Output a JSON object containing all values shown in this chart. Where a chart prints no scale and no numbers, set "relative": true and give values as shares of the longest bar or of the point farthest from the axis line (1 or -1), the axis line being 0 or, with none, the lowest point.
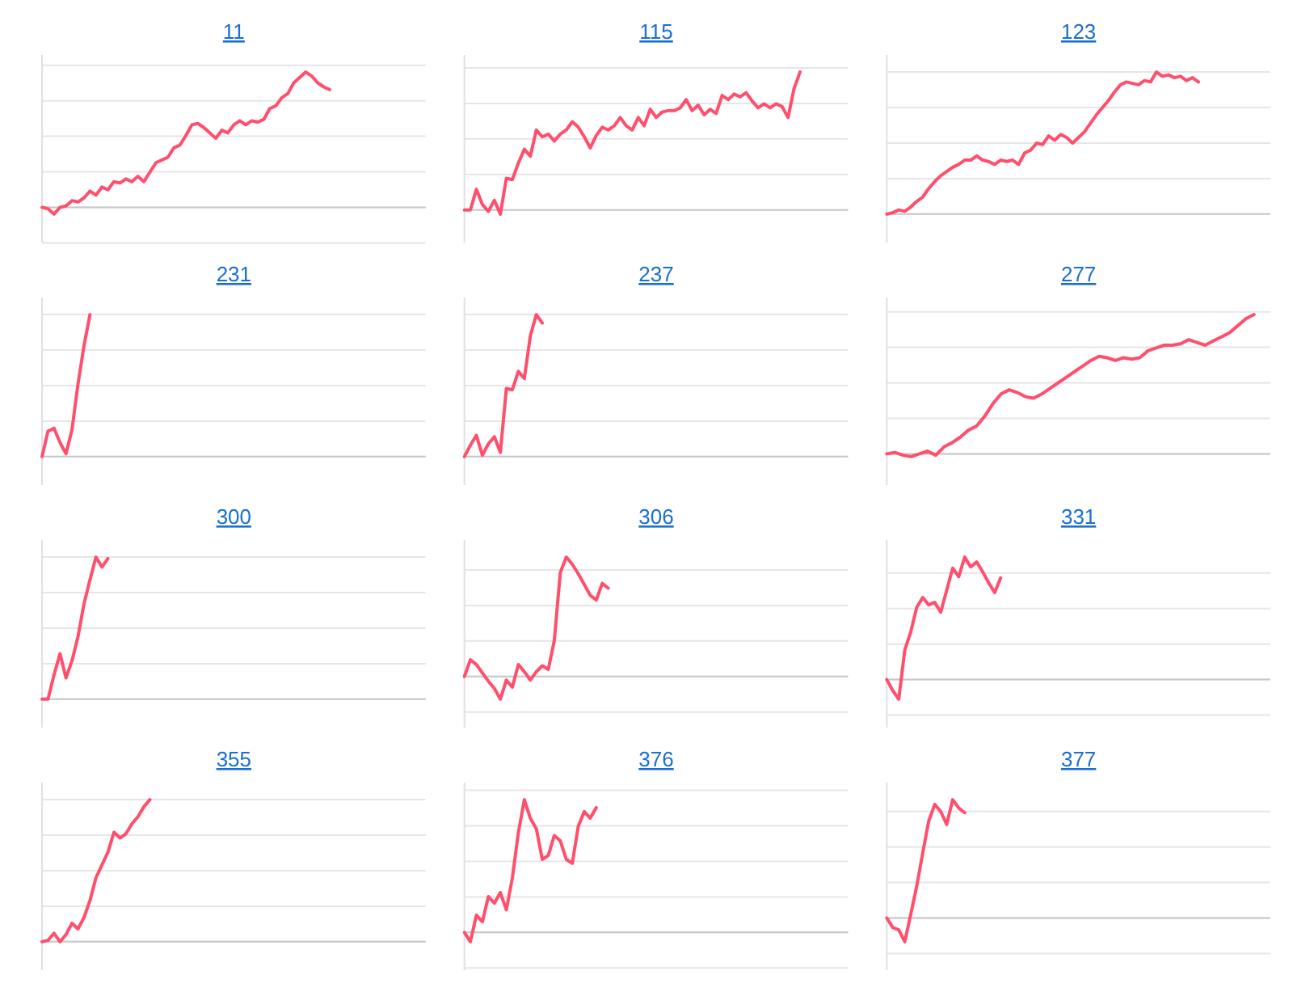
{
  "chart_data": [
    {
      "type": "line",
      "title": "11",
      "relative": true,
      "grid": "y",
      "categories": [
        null,
        null,
        null,
        null,
        null,
        null,
        null,
        null,
        null,
        null,
        null,
        null,
        null,
        null,
        null,
        null,
        null,
        null,
        null,
        null,
        null,
        null,
        null,
        null,
        null,
        null,
        null,
        null,
        null,
        null,
        null,
        null,
        null,
        null,
        null,
        null,
        null,
        null,
        null,
        null,
        null,
        null,
        null,
        null,
        null,
        null,
        null,
        null,
        null,
        null,
        null,
        null,
        null,
        null,
        null,
        null,
        null,
        null,
        null,
        null,
        null,
        null,
        null,
        null,
        null
      ],
      "series": [
        {
          "color": "#ff4f6d",
          "values": [
            0,
            -0.01,
            -0.05,
            0,
            0.01,
            0.05,
            0.04,
            0.07,
            0.12,
            0.09,
            0.15,
            0.13,
            0.19,
            0.18,
            0.21,
            0.19,
            0.23,
            0.19,
            0.26,
            0.33,
            0.35,
            0.37,
            0.44,
            0.46,
            0.53,
            0.61,
            0.62,
            0.59,
            0.55,
            0.51,
            0.57,
            0.55,
            0.61,
            0.64,
            0.61,
            0.64,
            0.63,
            0.65,
            0.73,
            0.75,
            0.81,
            0.84,
            0.92,
            0.96,
            1,
            0.97,
            0.92,
            0.89,
            0.87,
            null,
            null,
            null,
            null,
            null,
            null,
            null,
            null,
            null,
            null,
            null,
            null,
            null,
            null,
            null,
            null
          ]
        }
      ]
    },
    {
      "type": "line",
      "title": "115",
      "relative": true,
      "grid": "y",
      "categories": [
        null,
        null,
        null,
        null,
        null,
        null,
        null,
        null,
        null,
        null,
        null,
        null,
        null,
        null,
        null,
        null,
        null,
        null,
        null,
        null,
        null,
        null,
        null,
        null,
        null,
        null,
        null,
        null,
        null,
        null,
        null,
        null,
        null,
        null,
        null,
        null,
        null,
        null,
        null,
        null,
        null,
        null,
        null,
        null,
        null,
        null,
        null,
        null,
        null,
        null,
        null,
        null,
        null,
        null,
        null,
        null,
        null,
        null,
        null,
        null,
        null,
        null,
        null,
        null,
        null
      ],
      "series": [
        {
          "color": "#ff4f6d",
          "values": [
            0,
            0,
            0.15,
            0.04,
            -0.01,
            0.07,
            -0.03,
            0.23,
            0.22,
            0.34,
            0.44,
            0.39,
            0.58,
            0.53,
            0.55,
            0.5,
            0.55,
            0.58,
            0.64,
            0.6,
            0.53,
            0.45,
            0.54,
            0.6,
            0.58,
            0.61,
            0.67,
            0.61,
            0.58,
            0.67,
            0.61,
            0.73,
            0.67,
            0.71,
            0.72,
            0.72,
            0.74,
            0.8,
            0.72,
            0.76,
            0.69,
            0.73,
            0.7,
            0.83,
            0.8,
            0.84,
            0.82,
            0.85,
            0.79,
            0.74,
            0.77,
            0.74,
            0.77,
            0.75,
            0.67,
            0.88,
            1,
            null,
            null,
            null,
            null,
            null,
            null,
            null,
            null
          ]
        }
      ]
    },
    {
      "type": "line",
      "title": "123",
      "relative": true,
      "grid": "y",
      "categories": [
        null,
        null,
        null,
        null,
        null,
        null,
        null,
        null,
        null,
        null,
        null,
        null,
        null,
        null,
        null,
        null,
        null,
        null,
        null,
        null,
        null,
        null,
        null,
        null,
        null,
        null,
        null,
        null,
        null,
        null,
        null,
        null,
        null,
        null,
        null,
        null,
        null,
        null,
        null,
        null,
        null,
        null,
        null,
        null,
        null,
        null,
        null,
        null,
        null,
        null,
        null,
        null,
        null,
        null,
        null,
        null,
        null,
        null,
        null,
        null,
        null,
        null,
        null,
        null,
        null
      ],
      "series": [
        {
          "color": "#ff4f6d",
          "values": [
            0,
            0.01,
            0.03,
            0.02,
            0.05,
            0.09,
            0.12,
            0.18,
            0.23,
            0.27,
            0.3,
            0.33,
            0.35,
            0.38,
            0.38,
            0.41,
            0.38,
            0.37,
            0.35,
            0.38,
            0.37,
            0.38,
            0.35,
            0.43,
            0.45,
            0.5,
            0.49,
            0.55,
            0.52,
            0.56,
            0.54,
            0.5,
            0.54,
            0.58,
            0.64,
            0.7,
            0.75,
            0.8,
            0.86,
            0.91,
            0.93,
            0.92,
            0.91,
            0.94,
            0.93,
            1,
            0.97,
            0.98,
            0.96,
            0.97,
            0.94,
            0.96,
            0.93,
            null,
            null,
            null,
            null,
            null,
            null,
            null,
            null,
            null,
            null,
            null,
            null
          ]
        }
      ]
    },
    {
      "type": "line",
      "title": "231",
      "relative": true,
      "grid": "y",
      "categories": [
        null,
        null,
        null,
        null,
        null,
        null,
        null,
        null,
        null,
        null,
        null,
        null,
        null,
        null,
        null,
        null,
        null,
        null,
        null,
        null,
        null,
        null,
        null,
        null,
        null,
        null,
        null,
        null,
        null,
        null,
        null,
        null,
        null,
        null,
        null,
        null,
        null,
        null,
        null,
        null,
        null,
        null,
        null,
        null,
        null,
        null,
        null,
        null,
        null,
        null,
        null,
        null,
        null,
        null,
        null,
        null,
        null,
        null,
        null,
        null,
        null,
        null,
        null,
        null,
        null
      ],
      "series": [
        {
          "color": "#ff4f6d",
          "values": [
            0,
            0.18,
            0.2,
            0.1,
            0.02,
            0.19,
            0.51,
            0.78,
            1,
            null,
            null,
            null,
            null,
            null,
            null,
            null,
            null,
            null,
            null,
            null,
            null,
            null,
            null,
            null,
            null,
            null,
            null,
            null,
            null,
            null,
            null,
            null,
            null,
            null,
            null,
            null,
            null,
            null,
            null,
            null,
            null,
            null,
            null,
            null,
            null,
            null,
            null,
            null,
            null,
            null,
            null,
            null,
            null,
            null,
            null,
            null,
            null,
            null,
            null,
            null,
            null,
            null,
            null,
            null,
            null
          ]
        }
      ]
    },
    {
      "type": "line",
      "title": "237",
      "relative": true,
      "grid": "y",
      "categories": [
        null,
        null,
        null,
        null,
        null,
        null,
        null,
        null,
        null,
        null,
        null,
        null,
        null,
        null,
        null,
        null,
        null,
        null,
        null,
        null,
        null,
        null,
        null,
        null,
        null,
        null,
        null,
        null,
        null,
        null,
        null,
        null,
        null,
        null,
        null,
        null,
        null,
        null,
        null,
        null,
        null,
        null,
        null,
        null,
        null,
        null,
        null,
        null,
        null,
        null,
        null,
        null,
        null,
        null,
        null,
        null,
        null,
        null,
        null,
        null,
        null,
        null,
        null,
        null,
        null
      ],
      "series": [
        {
          "color": "#ff4f6d",
          "values": [
            0,
            0.08,
            0.15,
            0.01,
            0.09,
            0.14,
            0.03,
            0.48,
            0.47,
            0.6,
            0.55,
            0.85,
            1,
            0.94,
            null,
            null,
            null,
            null,
            null,
            null,
            null,
            null,
            null,
            null,
            null,
            null,
            null,
            null,
            null,
            null,
            null,
            null,
            null,
            null,
            null,
            null,
            null,
            null,
            null,
            null,
            null,
            null,
            null,
            null,
            null,
            null,
            null,
            null,
            null,
            null,
            null,
            null,
            null,
            null,
            null,
            null,
            null,
            null,
            null,
            null,
            null,
            null,
            null,
            null,
            null
          ]
        }
      ]
    },
    {
      "type": "line",
      "title": "277",
      "relative": true,
      "grid": "y",
      "categories": [
        null,
        null,
        null,
        null,
        null,
        null,
        null,
        null,
        null,
        null,
        null,
        null,
        null,
        null,
        null,
        null,
        null,
        null,
        null,
        null,
        null,
        null,
        null,
        null,
        null,
        null,
        null,
        null,
        null,
        null,
        null,
        null,
        null,
        null,
        null,
        null,
        null,
        null,
        null,
        null,
        null,
        null,
        null,
        null,
        null,
        null,
        null,
        null
      ],
      "series": [
        {
          "color": "#ff4f6d",
          "values": [
            0,
            0.01,
            -0.01,
            -0.02,
            0,
            0.02,
            -0.01,
            0.05,
            0.08,
            0.12,
            0.17,
            0.2,
            0.27,
            0.36,
            0.43,
            0.46,
            0.44,
            0.41,
            0.4,
            0.43,
            0.47,
            0.51,
            0.55,
            0.59,
            0.63,
            0.67,
            0.7,
            0.69,
            0.67,
            0.69,
            0.68,
            0.69,
            0.74,
            0.76,
            0.78,
            0.78,
            0.79,
            0.82,
            0.8,
            0.78,
            0.81,
            0.84,
            0.87,
            0.92,
            0.97,
            1,
            null,
            null
          ]
        }
      ]
    },
    {
      "type": "line",
      "title": "300",
      "relative": true,
      "grid": "y",
      "categories": [
        null,
        null,
        null,
        null,
        null,
        null,
        null,
        null,
        null,
        null,
        null,
        null,
        null,
        null,
        null,
        null,
        null,
        null,
        null,
        null,
        null,
        null,
        null,
        null,
        null,
        null,
        null,
        null,
        null,
        null,
        null,
        null,
        null,
        null,
        null,
        null,
        null,
        null,
        null,
        null,
        null,
        null,
        null,
        null,
        null,
        null,
        null,
        null,
        null,
        null,
        null,
        null,
        null,
        null,
        null,
        null,
        null,
        null,
        null,
        null,
        null,
        null,
        null,
        null,
        null
      ],
      "series": [
        {
          "color": "#ff4f6d",
          "values": [
            0,
            0,
            0.17,
            0.32,
            0.15,
            0.27,
            0.44,
            0.67,
            0.84,
            1,
            0.93,
            0.99,
            null,
            null,
            null,
            null,
            null,
            null,
            null,
            null,
            null,
            null,
            null,
            null,
            null,
            null,
            null,
            null,
            null,
            null,
            null,
            null,
            null,
            null,
            null,
            null,
            null,
            null,
            null,
            null,
            null,
            null,
            null,
            null,
            null,
            null,
            null,
            null,
            null,
            null,
            null,
            null,
            null,
            null,
            null,
            null,
            null,
            null,
            null,
            null,
            null,
            null,
            null,
            null,
            null
          ]
        }
      ]
    },
    {
      "type": "line",
      "title": "306",
      "relative": true,
      "grid": "y",
      "categories": [
        null,
        null,
        null,
        null,
        null,
        null,
        null,
        null,
        null,
        null,
        null,
        null,
        null,
        null,
        null,
        null,
        null,
        null,
        null,
        null,
        null,
        null,
        null,
        null,
        null,
        null,
        null,
        null,
        null,
        null,
        null,
        null,
        null,
        null,
        null,
        null,
        null,
        null,
        null,
        null,
        null,
        null,
        null,
        null,
        null,
        null,
        null,
        null,
        null,
        null,
        null,
        null,
        null,
        null,
        null,
        null,
        null,
        null,
        null,
        null,
        null,
        null,
        null,
        null,
        null
      ],
      "series": [
        {
          "color": "#ff4f6d",
          "values": [
            0,
            0.14,
            0.1,
            0.03,
            -0.04,
            -0.1,
            -0.19,
            -0.03,
            -0.09,
            0.1,
            0.04,
            -0.03,
            0.04,
            0.09,
            0.06,
            0.3,
            0.87,
            1,
            0.94,
            0.86,
            0.77,
            0.68,
            0.64,
            0.78,
            0.74,
            null,
            null,
            null,
            null,
            null,
            null,
            null,
            null,
            null,
            null,
            null,
            null,
            null,
            null,
            null,
            null,
            null,
            null,
            null,
            null,
            null,
            null,
            null,
            null,
            null,
            null,
            null,
            null,
            null,
            null,
            null,
            null,
            null,
            null,
            null,
            null,
            null,
            null,
            null,
            null
          ]
        }
      ]
    },
    {
      "type": "line",
      "title": "331",
      "relative": true,
      "grid": "y",
      "categories": [
        null,
        null,
        null,
        null,
        null,
        null,
        null,
        null,
        null,
        null,
        null,
        null,
        null,
        null,
        null,
        null,
        null,
        null,
        null,
        null,
        null,
        null,
        null,
        null,
        null,
        null,
        null,
        null,
        null,
        null,
        null,
        null,
        null,
        null,
        null,
        null,
        null,
        null,
        null,
        null,
        null,
        null,
        null,
        null,
        null,
        null,
        null,
        null,
        null,
        null,
        null,
        null,
        null,
        null,
        null,
        null,
        null,
        null,
        null,
        null,
        null,
        null,
        null,
        null,
        null
      ],
      "series": [
        {
          "color": "#ff4f6d",
          "values": [
            0,
            -0.09,
            -0.16,
            0.24,
            0.39,
            0.59,
            0.67,
            0.61,
            0.63,
            0.55,
            0.73,
            0.91,
            0.84,
            1,
            0.92,
            0.96,
            0.88,
            0.79,
            0.71,
            0.83,
            null,
            null,
            null,
            null,
            null,
            null,
            null,
            null,
            null,
            null,
            null,
            null,
            null,
            null,
            null,
            null,
            null,
            null,
            null,
            null,
            null,
            null,
            null,
            null,
            null,
            null,
            null,
            null,
            null,
            null,
            null,
            null,
            null,
            null,
            null,
            null,
            null,
            null,
            null,
            null,
            null,
            null,
            null,
            null,
            null
          ]
        }
      ]
    },
    {
      "type": "line",
      "title": "355",
      "relative": true,
      "grid": "y",
      "categories": [
        null,
        null,
        null,
        null,
        null,
        null,
        null,
        null,
        null,
        null,
        null,
        null,
        null,
        null,
        null,
        null,
        null,
        null,
        null,
        null,
        null,
        null,
        null,
        null,
        null,
        null,
        null,
        null,
        null,
        null,
        null,
        null,
        null,
        null,
        null,
        null,
        null,
        null,
        null,
        null,
        null,
        null,
        null,
        null,
        null,
        null,
        null,
        null,
        null,
        null,
        null,
        null,
        null,
        null,
        null,
        null,
        null,
        null,
        null,
        null,
        null,
        null,
        null,
        null,
        null
      ],
      "series": [
        {
          "color": "#ff4f6d",
          "values": [
            0,
            0.01,
            0.06,
            0,
            0.05,
            0.13,
            0.09,
            0.17,
            0.29,
            0.45,
            0.54,
            0.63,
            0.77,
            0.73,
            0.76,
            0.83,
            0.88,
            0.95,
            1,
            null,
            null,
            null,
            null,
            null,
            null,
            null,
            null,
            null,
            null,
            null,
            null,
            null,
            null,
            null,
            null,
            null,
            null,
            null,
            null,
            null,
            null,
            null,
            null,
            null,
            null,
            null,
            null,
            null,
            null,
            null,
            null,
            null,
            null,
            null,
            null,
            null,
            null,
            null,
            null,
            null,
            null,
            null,
            null,
            null,
            null
          ]
        }
      ]
    },
    {
      "type": "line",
      "title": "376",
      "relative": true,
      "grid": "y",
      "categories": [
        null,
        null,
        null,
        null,
        null,
        null,
        null,
        null,
        null,
        null,
        null,
        null,
        null,
        null,
        null,
        null,
        null,
        null,
        null,
        null,
        null,
        null,
        null,
        null,
        null,
        null,
        null,
        null,
        null,
        null,
        null,
        null,
        null,
        null,
        null,
        null,
        null,
        null,
        null,
        null,
        null,
        null,
        null,
        null,
        null,
        null,
        null,
        null,
        null,
        null,
        null,
        null,
        null,
        null,
        null,
        null,
        null,
        null,
        null,
        null,
        null,
        null,
        null,
        null,
        null
      ],
      "series": [
        {
          "color": "#ff4f6d",
          "values": [
            0,
            -0.07,
            0.13,
            0.08,
            0.27,
            0.22,
            0.3,
            0.17,
            0.41,
            0.75,
            1,
            0.86,
            0.78,
            0.55,
            0.58,
            0.73,
            0.69,
            0.55,
            0.52,
            0.8,
            0.91,
            0.86,
            0.94,
            null,
            null,
            null,
            null,
            null,
            null,
            null,
            null,
            null,
            null,
            null,
            null,
            null,
            null,
            null,
            null,
            null,
            null,
            null,
            null,
            null,
            null,
            null,
            null,
            null,
            null,
            null,
            null,
            null,
            null,
            null,
            null,
            null,
            null,
            null,
            null,
            null,
            null,
            null,
            null,
            null,
            null
          ]
        }
      ]
    },
    {
      "type": "line",
      "title": "377",
      "relative": true,
      "grid": "y",
      "categories": [
        null,
        null,
        null,
        null,
        null,
        null,
        null,
        null,
        null,
        null,
        null,
        null,
        null,
        null,
        null,
        null,
        null,
        null,
        null,
        null,
        null,
        null,
        null,
        null,
        null,
        null,
        null,
        null,
        null,
        null,
        null,
        null,
        null,
        null,
        null,
        null,
        null,
        null,
        null,
        null,
        null,
        null,
        null,
        null,
        null,
        null,
        null,
        null,
        null,
        null,
        null,
        null,
        null,
        null,
        null,
        null,
        null,
        null,
        null,
        null,
        null,
        null,
        null,
        null,
        null
      ],
      "series": [
        {
          "color": "#ff4f6d",
          "values": [
            0,
            -0.08,
            -0.1,
            -0.2,
            0.03,
            0.27,
            0.55,
            0.82,
            0.96,
            0.9,
            0.79,
            1,
            0.93,
            0.89,
            null,
            null,
            null,
            null,
            null,
            null,
            null,
            null,
            null,
            null,
            null,
            null,
            null,
            null,
            null,
            null,
            null,
            null,
            null,
            null,
            null,
            null,
            null,
            null,
            null,
            null,
            null,
            null,
            null,
            null,
            null,
            null,
            null,
            null,
            null,
            null,
            null,
            null,
            null,
            null,
            null,
            null,
            null,
            null,
            null,
            null,
            null,
            null,
            null,
            null,
            null
          ]
        }
      ]
    }
  ]
}
